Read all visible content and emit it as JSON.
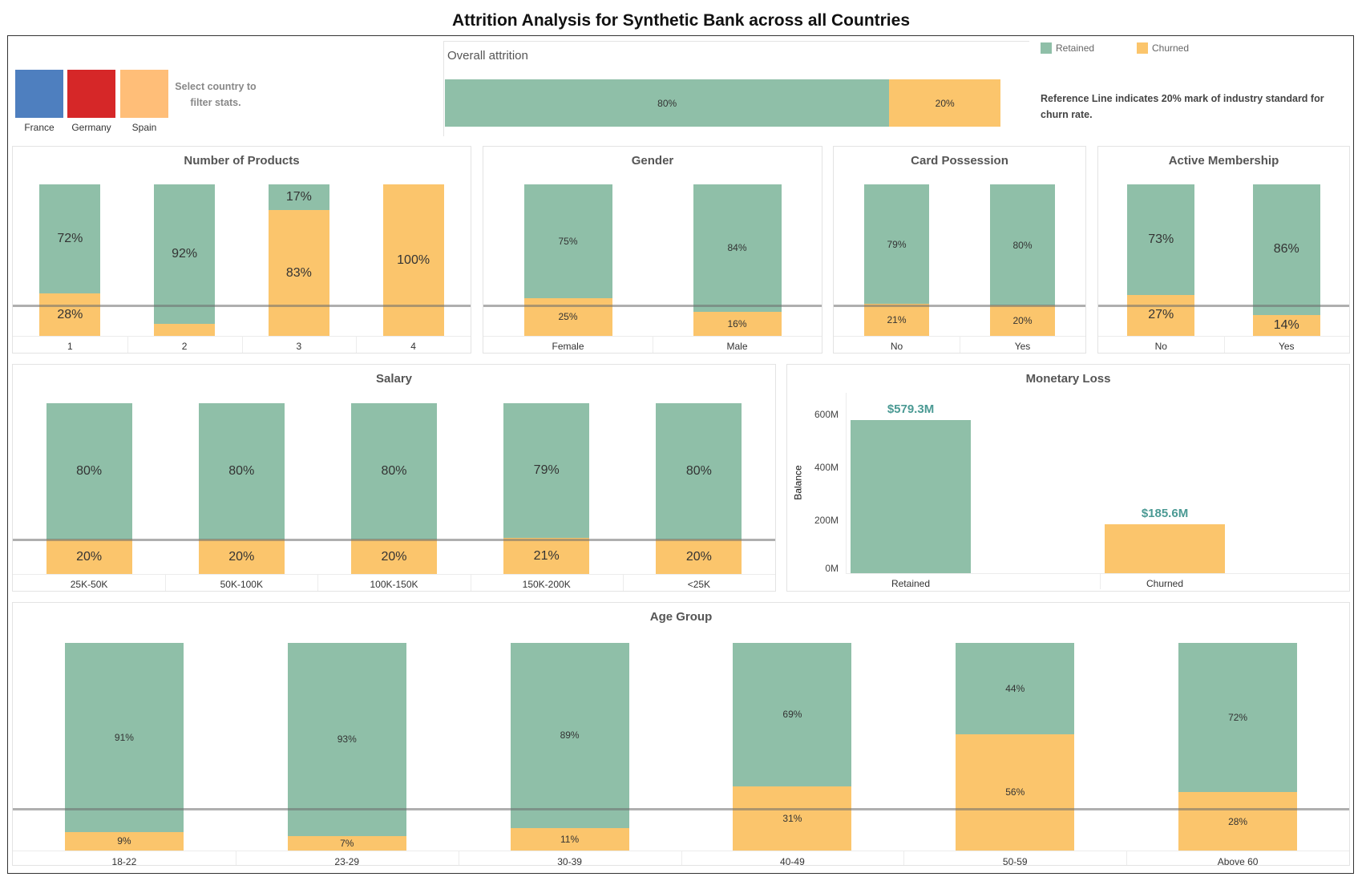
{
  "title": "Attrition Analysis for Synthetic Bank across all Countries",
  "filter": {
    "countries": [
      {
        "label": "France",
        "color": "#4e7fbf"
      },
      {
        "label": "Germany",
        "color": "#d62728"
      },
      {
        "label": "Spain",
        "color": "#ffbe78"
      }
    ],
    "hint": "Select country to filter stats."
  },
  "legend": [
    {
      "label": "Retained",
      "color": "#8fbfa8"
    },
    {
      "label": "Churned",
      "color": "#fbc56c"
    }
  ],
  "reference_note": "Reference Line indicates 20% mark of industry standard for churn rate.",
  "colors": {
    "retained": "#8fbfa8",
    "churned": "#fbc56c",
    "reference_line": "#8a8a8a"
  },
  "reference_line_value": 20,
  "chart_data": [
    {
      "type": "bar",
      "orientation": "horizontal",
      "stacked": true,
      "title": "Overall attrition",
      "series": [
        {
          "name": "Retained",
          "values": [
            80
          ],
          "labels": [
            "80%"
          ]
        },
        {
          "name": "Churned",
          "values": [
            20
          ],
          "labels": [
            "20%"
          ]
        }
      ]
    },
    {
      "type": "bar",
      "stacked": true,
      "title": "Number of Products",
      "categories": [
        "1",
        "2",
        "3",
        "4"
      ],
      "ylim": [
        0,
        100
      ],
      "series": [
        {
          "name": "Retained",
          "values": [
            72,
            92,
            17,
            0
          ],
          "labels": [
            "72%",
            "92%",
            "17%",
            ""
          ]
        },
        {
          "name": "Churned",
          "values": [
            28,
            8,
            83,
            100
          ],
          "labels": [
            "28%",
            "",
            "83%",
            "100%"
          ]
        }
      ]
    },
    {
      "type": "bar",
      "stacked": true,
      "title": "Gender",
      "categories": [
        "Female",
        "Male"
      ],
      "ylim": [
        0,
        100
      ],
      "series": [
        {
          "name": "Retained",
          "values": [
            75,
            84
          ],
          "labels": [
            "75%",
            "84%"
          ]
        },
        {
          "name": "Churned",
          "values": [
            25,
            16
          ],
          "labels": [
            "25%",
            "16%"
          ]
        }
      ]
    },
    {
      "type": "bar",
      "stacked": true,
      "title": "Card Possession",
      "categories": [
        "No",
        "Yes"
      ],
      "ylim": [
        0,
        100
      ],
      "series": [
        {
          "name": "Retained",
          "values": [
            79,
            80
          ],
          "labels": [
            "79%",
            "80%"
          ]
        },
        {
          "name": "Churned",
          "values": [
            21,
            20
          ],
          "labels": [
            "21%",
            "20%"
          ]
        }
      ]
    },
    {
      "type": "bar",
      "stacked": true,
      "title": "Active Membership",
      "categories": [
        "No",
        "Yes"
      ],
      "ylim": [
        0,
        100
      ],
      "series": [
        {
          "name": "Retained",
          "values": [
            73,
            86
          ],
          "labels": [
            "73%",
            "86%"
          ]
        },
        {
          "name": "Churned",
          "values": [
            27,
            14
          ],
          "labels": [
            "27%",
            "14%"
          ]
        }
      ]
    },
    {
      "type": "bar",
      "stacked": true,
      "title": "Salary",
      "categories": [
        "25K-50K",
        "50K-100K",
        "100K-150K",
        "150K-200K",
        "<25K"
      ],
      "ylim": [
        0,
        100
      ],
      "series": [
        {
          "name": "Retained",
          "values": [
            80,
            80,
            80,
            79,
            80
          ],
          "labels": [
            "80%",
            "80%",
            "80%",
            "79%",
            "80%"
          ]
        },
        {
          "name": "Churned",
          "values": [
            20,
            20,
            20,
            21,
            20
          ],
          "labels": [
            "20%",
            "20%",
            "20%",
            "21%",
            "20%"
          ]
        }
      ]
    },
    {
      "type": "bar",
      "title": "Monetary Loss",
      "categories": [
        "Retained",
        "Churned"
      ],
      "values": [
        579.3,
        185.6
      ],
      "labels": [
        "$579.3M",
        "$185.6M"
      ],
      "ylabel": "Balance",
      "ylim": [
        0,
        650
      ],
      "yticks": [
        0,
        200,
        400,
        600
      ],
      "ytick_labels": [
        "0M",
        "200M",
        "400M",
        "600M"
      ]
    },
    {
      "type": "bar",
      "stacked": true,
      "title": "Age Group",
      "categories": [
        "18-22",
        "23-29",
        "30-39",
        "40-49",
        "50-59",
        "Above 60"
      ],
      "ylim": [
        0,
        100
      ],
      "series": [
        {
          "name": "Retained",
          "values": [
            91,
            93,
            89,
            69,
            44,
            72
          ],
          "labels": [
            "91%",
            "93%",
            "89%",
            "69%",
            "44%",
            "72%"
          ]
        },
        {
          "name": "Churned",
          "values": [
            9,
            7,
            11,
            31,
            56,
            28
          ],
          "labels": [
            "9%",
            "7%",
            "11%",
            "31%",
            "56%",
            "28%"
          ]
        }
      ]
    }
  ]
}
